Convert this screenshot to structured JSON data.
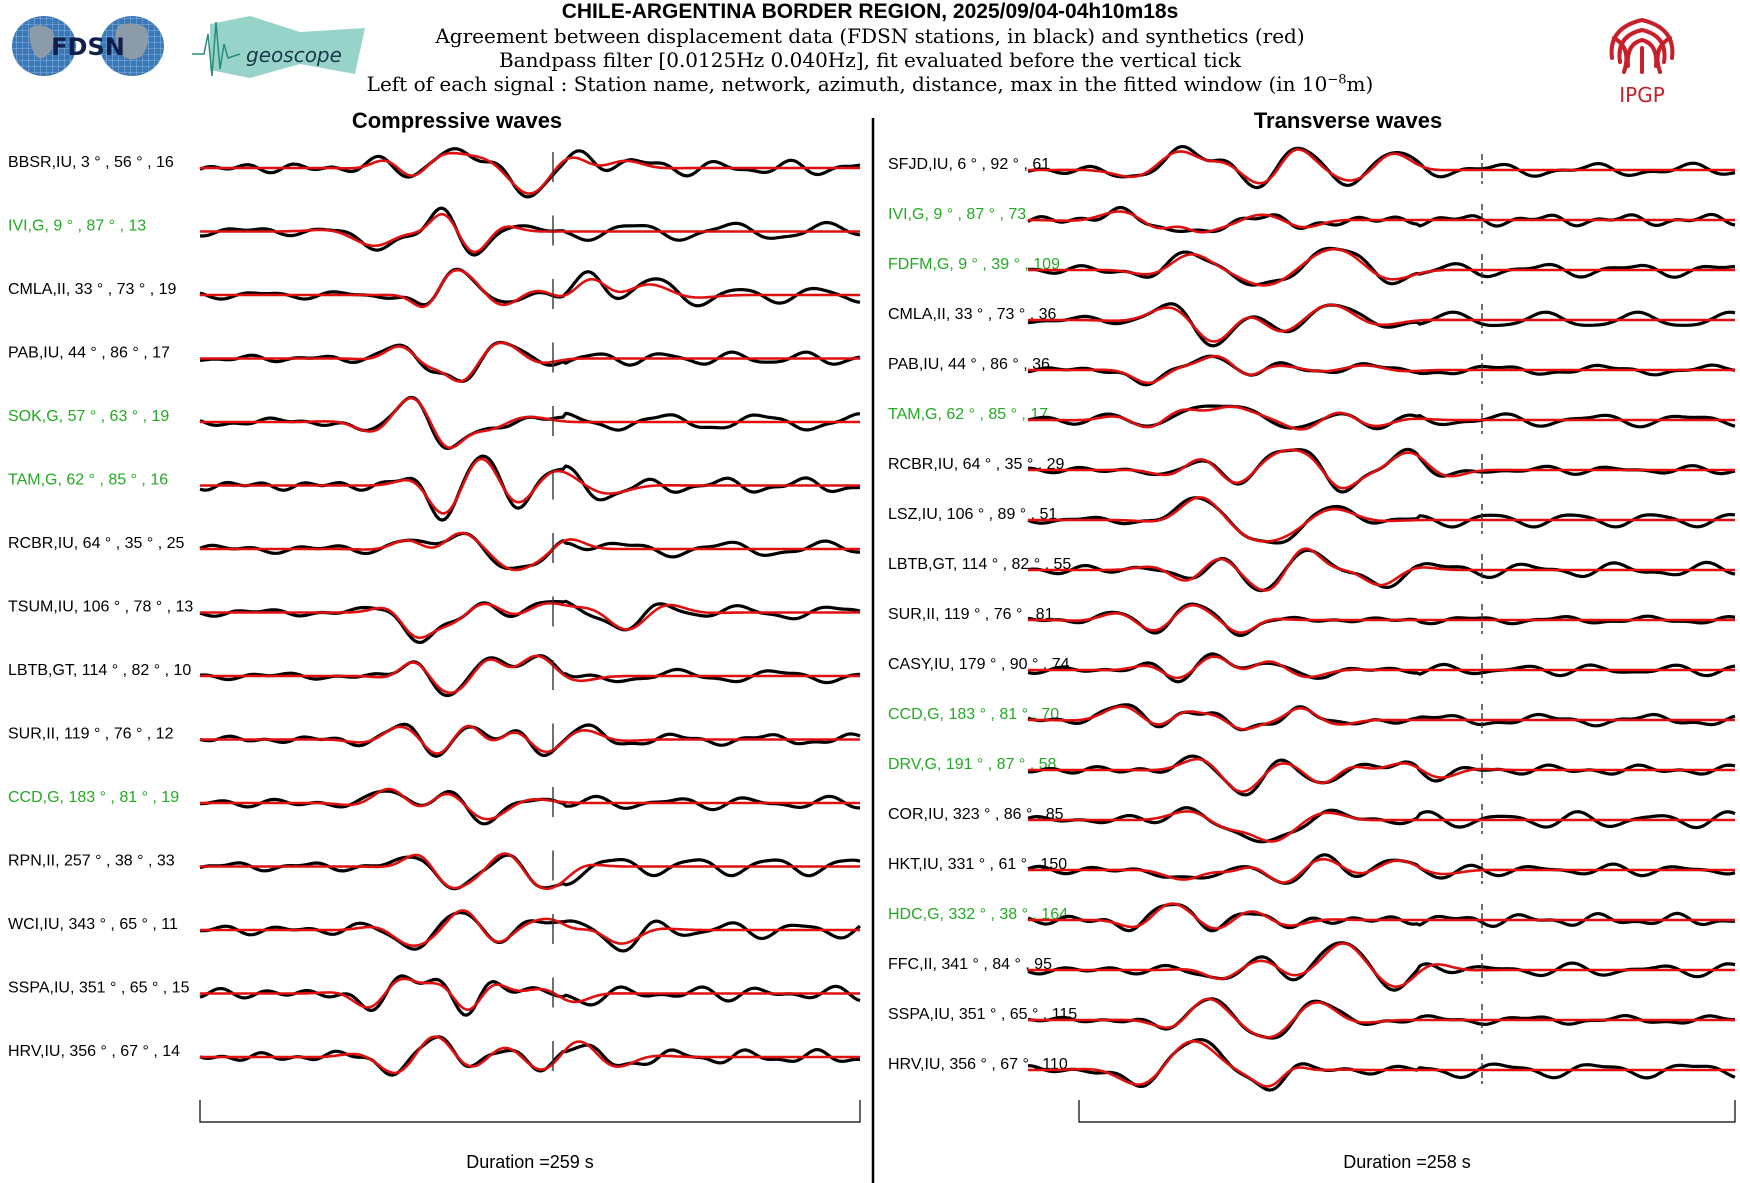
{
  "header": {
    "title": "CHILE-ARGENTINA BORDER REGION, 2025/09/04-04h10m18s",
    "line1": "Agreement between displacement data (FDSN stations, in black) and synthetics (red)",
    "line2": "Bandpass filter [0.0125Hz 0.040Hz], fit evaluated before the vertical tick",
    "line3_prefix": "Left of each signal : Station name, network, azimuth, distance, max in the fitted window (in 10",
    "line3_exp": "−8",
    "line3_suffix": "m)"
  },
  "logos": {
    "fdsn": "FDSN",
    "geoscope": "geoscope",
    "ipgp": "IPGP"
  },
  "colors": {
    "data": "#000000",
    "synthetic": "#e01010",
    "label_black": "#000000",
    "label_green": "#22aa22",
    "ipgp_red": "#c8202a",
    "globe_blue": "#3a78b8",
    "geoscope_teal": "#6cc0b4"
  },
  "chart_data": [
    {
      "type": "line",
      "title": "Compressive waves",
      "duration_label": "Duration =259 s",
      "series": [
        {
          "name": "data",
          "color": "#000000"
        },
        {
          "name": "synthetics",
          "color": "#e01010"
        }
      ],
      "stations": [
        {
          "station": "BBSR",
          "network": "IU",
          "azimuth": 3,
          "distance": 56,
          "max": 16,
          "green": false
        },
        {
          "station": "IVI",
          "network": "G",
          "azimuth": 9,
          "distance": 87,
          "max": 13,
          "green": true
        },
        {
          "station": "CMLA",
          "network": "II",
          "azimuth": 33,
          "distance": 73,
          "max": 19,
          "green": false
        },
        {
          "station": "PAB",
          "network": "IU",
          "azimuth": 44,
          "distance": 86,
          "max": 17,
          "green": false
        },
        {
          "station": "SOK",
          "network": "G",
          "azimuth": 57,
          "distance": 63,
          "max": 19,
          "green": true
        },
        {
          "station": "TAM",
          "network": "G",
          "azimuth": 62,
          "distance": 85,
          "max": 16,
          "green": true
        },
        {
          "station": "RCBR",
          "network": "IU",
          "azimuth": 64,
          "distance": 35,
          "max": 25,
          "green": false
        },
        {
          "station": "TSUM",
          "network": "IU",
          "azimuth": 106,
          "distance": 78,
          "max": 13,
          "green": false
        },
        {
          "station": "LBTB",
          "network": "GT",
          "azimuth": 114,
          "distance": 82,
          "max": 10,
          "green": false
        },
        {
          "station": "SUR",
          "network": "II",
          "azimuth": 119,
          "distance": 76,
          "max": 12,
          "green": false
        },
        {
          "station": "CCD",
          "network": "G",
          "azimuth": 183,
          "distance": 81,
          "max": 19,
          "green": true
        },
        {
          "station": "RPN",
          "network": "II",
          "azimuth": 257,
          "distance": 38,
          "max": 33,
          "green": false
        },
        {
          "station": "WCI",
          "network": "IU",
          "azimuth": 343,
          "distance": 65,
          "max": 11,
          "green": false
        },
        {
          "station": "SSPA",
          "network": "IU",
          "azimuth": 351,
          "distance": 65,
          "max": 15,
          "green": false
        },
        {
          "station": "HRV",
          "network": "IU",
          "azimuth": 356,
          "distance": 67,
          "max": 14,
          "green": false
        }
      ]
    },
    {
      "type": "line",
      "title": "Transverse waves",
      "duration_label": "Duration =258 s",
      "series": [
        {
          "name": "data",
          "color": "#000000"
        },
        {
          "name": "synthetics",
          "color": "#e01010"
        }
      ],
      "stations": [
        {
          "station": "SFJD",
          "network": "IU",
          "azimuth": 6,
          "distance": 92,
          "max": 61,
          "green": false
        },
        {
          "station": "IVI",
          "network": "G",
          "azimuth": 9,
          "distance": 87,
          "max": 73,
          "green": true
        },
        {
          "station": "FDFM",
          "network": "G",
          "azimuth": 9,
          "distance": 39,
          "max": 109,
          "green": true
        },
        {
          "station": "CMLA",
          "network": "II",
          "azimuth": 33,
          "distance": 73,
          "max": 36,
          "green": false
        },
        {
          "station": "PAB",
          "network": "IU",
          "azimuth": 44,
          "distance": 86,
          "max": 36,
          "green": false
        },
        {
          "station": "TAM",
          "network": "G",
          "azimuth": 62,
          "distance": 85,
          "max": 17,
          "green": true
        },
        {
          "station": "RCBR",
          "network": "IU",
          "azimuth": 64,
          "distance": 35,
          "max": 29,
          "green": false
        },
        {
          "station": "LSZ",
          "network": "IU",
          "azimuth": 106,
          "distance": 89,
          "max": 51,
          "green": false
        },
        {
          "station": "LBTB",
          "network": "GT",
          "azimuth": 114,
          "distance": 82,
          "max": 55,
          "green": false
        },
        {
          "station": "SUR",
          "network": "II",
          "azimuth": 119,
          "distance": 76,
          "max": 81,
          "green": false
        },
        {
          "station": "CASY",
          "network": "IU",
          "azimuth": 179,
          "distance": 90,
          "max": 74,
          "green": false
        },
        {
          "station": "CCD",
          "network": "G",
          "azimuth": 183,
          "distance": 81,
          "max": 70,
          "green": true
        },
        {
          "station": "DRV",
          "network": "G",
          "azimuth": 191,
          "distance": 87,
          "max": 58,
          "green": true
        },
        {
          "station": "COR",
          "network": "IU",
          "azimuth": 323,
          "distance": 86,
          "max": 85,
          "green": false
        },
        {
          "station": "HKT",
          "network": "IU",
          "azimuth": 331,
          "distance": 61,
          "max": 150,
          "green": false
        },
        {
          "station": "HDC",
          "network": "G",
          "azimuth": 332,
          "distance": 38,
          "max": 164,
          "green": true
        },
        {
          "station": "FFC",
          "network": "II",
          "azimuth": 341,
          "distance": 84,
          "max": 95,
          "green": false
        },
        {
          "station": "SSPA",
          "network": "IU",
          "azimuth": 351,
          "distance": 65,
          "max": 115,
          "green": false
        },
        {
          "station": "HRV",
          "network": "IU",
          "azimuth": 356,
          "distance": 67,
          "max": 110,
          "green": false
        }
      ]
    }
  ]
}
